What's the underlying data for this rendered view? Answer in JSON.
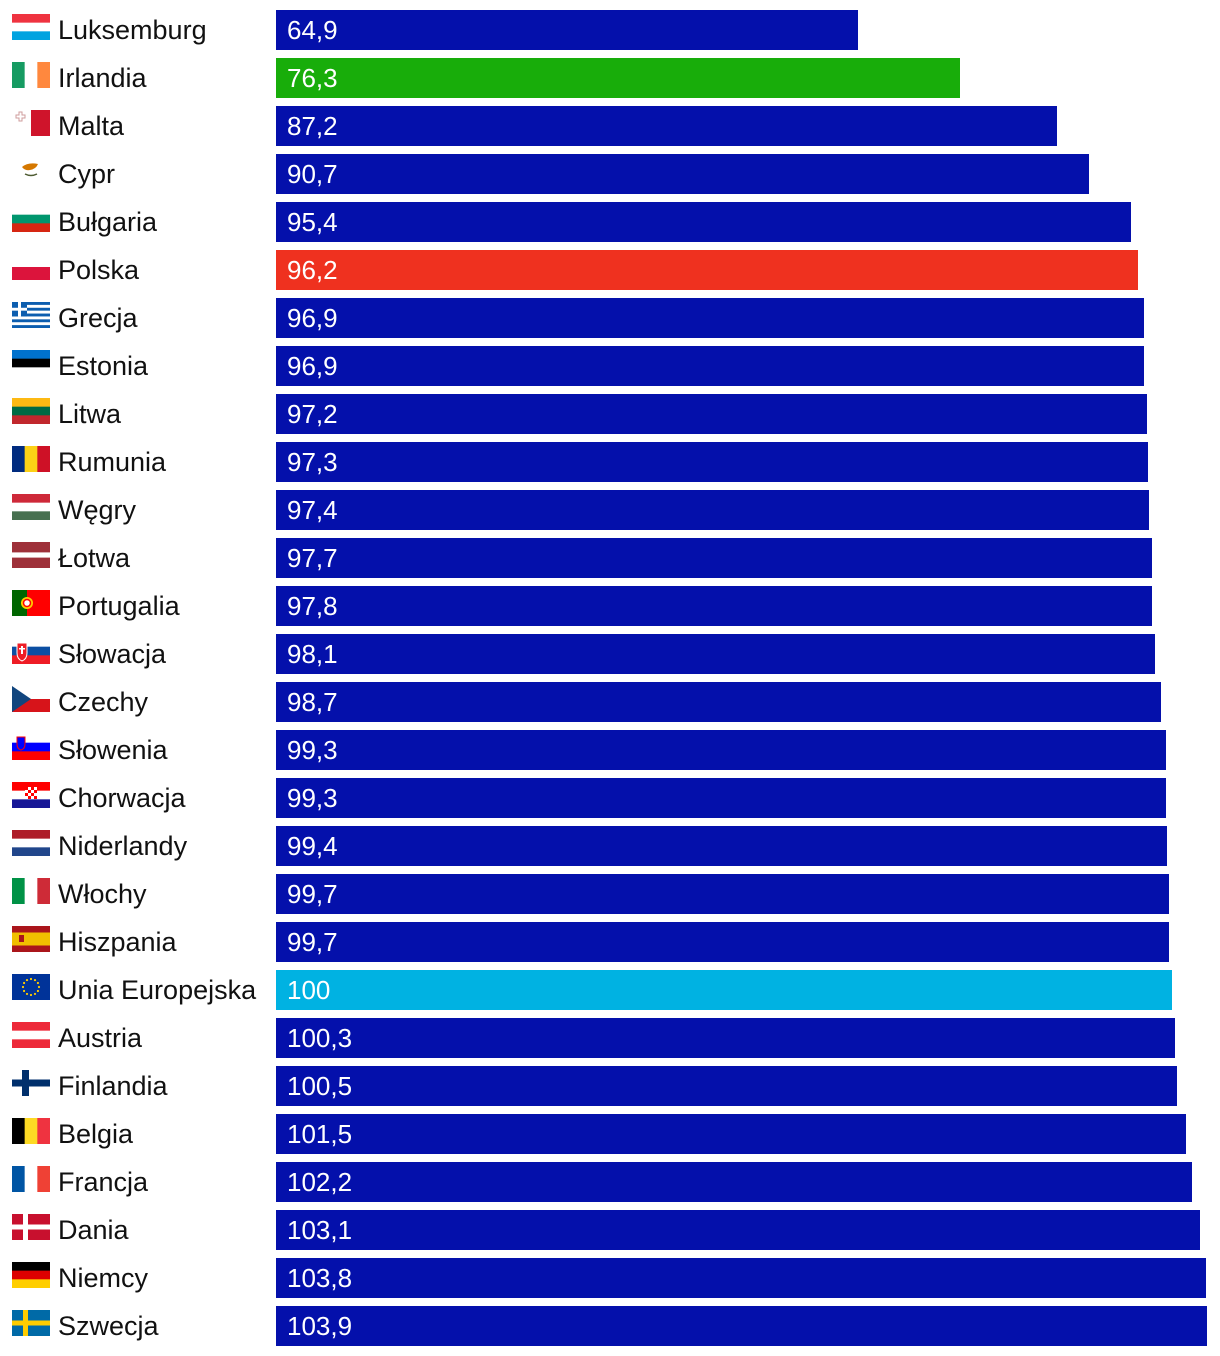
{
  "chart_data": {
    "type": "bar",
    "orientation": "horizontal",
    "categories": [
      "Luksemburg",
      "Irlandia",
      "Malta",
      "Cypr",
      "Bułgaria",
      "Polska",
      "Grecja",
      "Estonia",
      "Litwa",
      "Rumunia",
      "Węgry",
      "Łotwa",
      "Portugalia",
      "Słowacja",
      "Czechy",
      "Słowenia",
      "Chorwacja",
      "Niderlandy",
      "Włochy",
      "Hiszpania",
      "Unia Europejska",
      "Austria",
      "Finlandia",
      "Belgia",
      "Francja",
      "Dania",
      "Niemcy",
      "Szwecja"
    ],
    "values": [
      64.9,
      76.3,
      87.2,
      90.7,
      95.4,
      96.2,
      96.9,
      96.9,
      97.2,
      97.3,
      97.4,
      97.7,
      97.8,
      98.1,
      98.7,
      99.3,
      99.3,
      99.4,
      99.7,
      99.7,
      100,
      100.3,
      100.5,
      101.5,
      102.2,
      103.1,
      103.8,
      103.9
    ],
    "value_labels": [
      "64,9",
      "76,3",
      "87,2",
      "90,7",
      "95,4",
      "96,2",
      "96,9",
      "96,9",
      "97,2",
      "97,3",
      "97,4",
      "97,7",
      "97,8",
      "98,1",
      "98,7",
      "99,3",
      "99,3",
      "99,4",
      "99,7",
      "99,7",
      "100",
      "100,3",
      "100,5",
      "101,5",
      "102,2",
      "103,1",
      "103,8",
      "103,9"
    ],
    "flags": [
      "lu",
      "ie",
      "mt",
      "cy",
      "bg",
      "pl",
      "gr",
      "ee",
      "lt",
      "ro",
      "hu",
      "lv",
      "pt",
      "sk",
      "cz",
      "si",
      "hr",
      "nl",
      "it",
      "es",
      "eu",
      "at",
      "fi",
      "be",
      "fr",
      "dk",
      "de",
      "se"
    ],
    "colors": {
      "default": "#0410AB",
      "Irlandia": "#18AD0A",
      "Polska": "#EF311F",
      "Unia Europejska": "#00B2E2"
    },
    "xlim": [
      0,
      104
    ],
    "title": "",
    "xlabel": "",
    "ylabel": "",
    "grid": false,
    "legend": "none"
  }
}
